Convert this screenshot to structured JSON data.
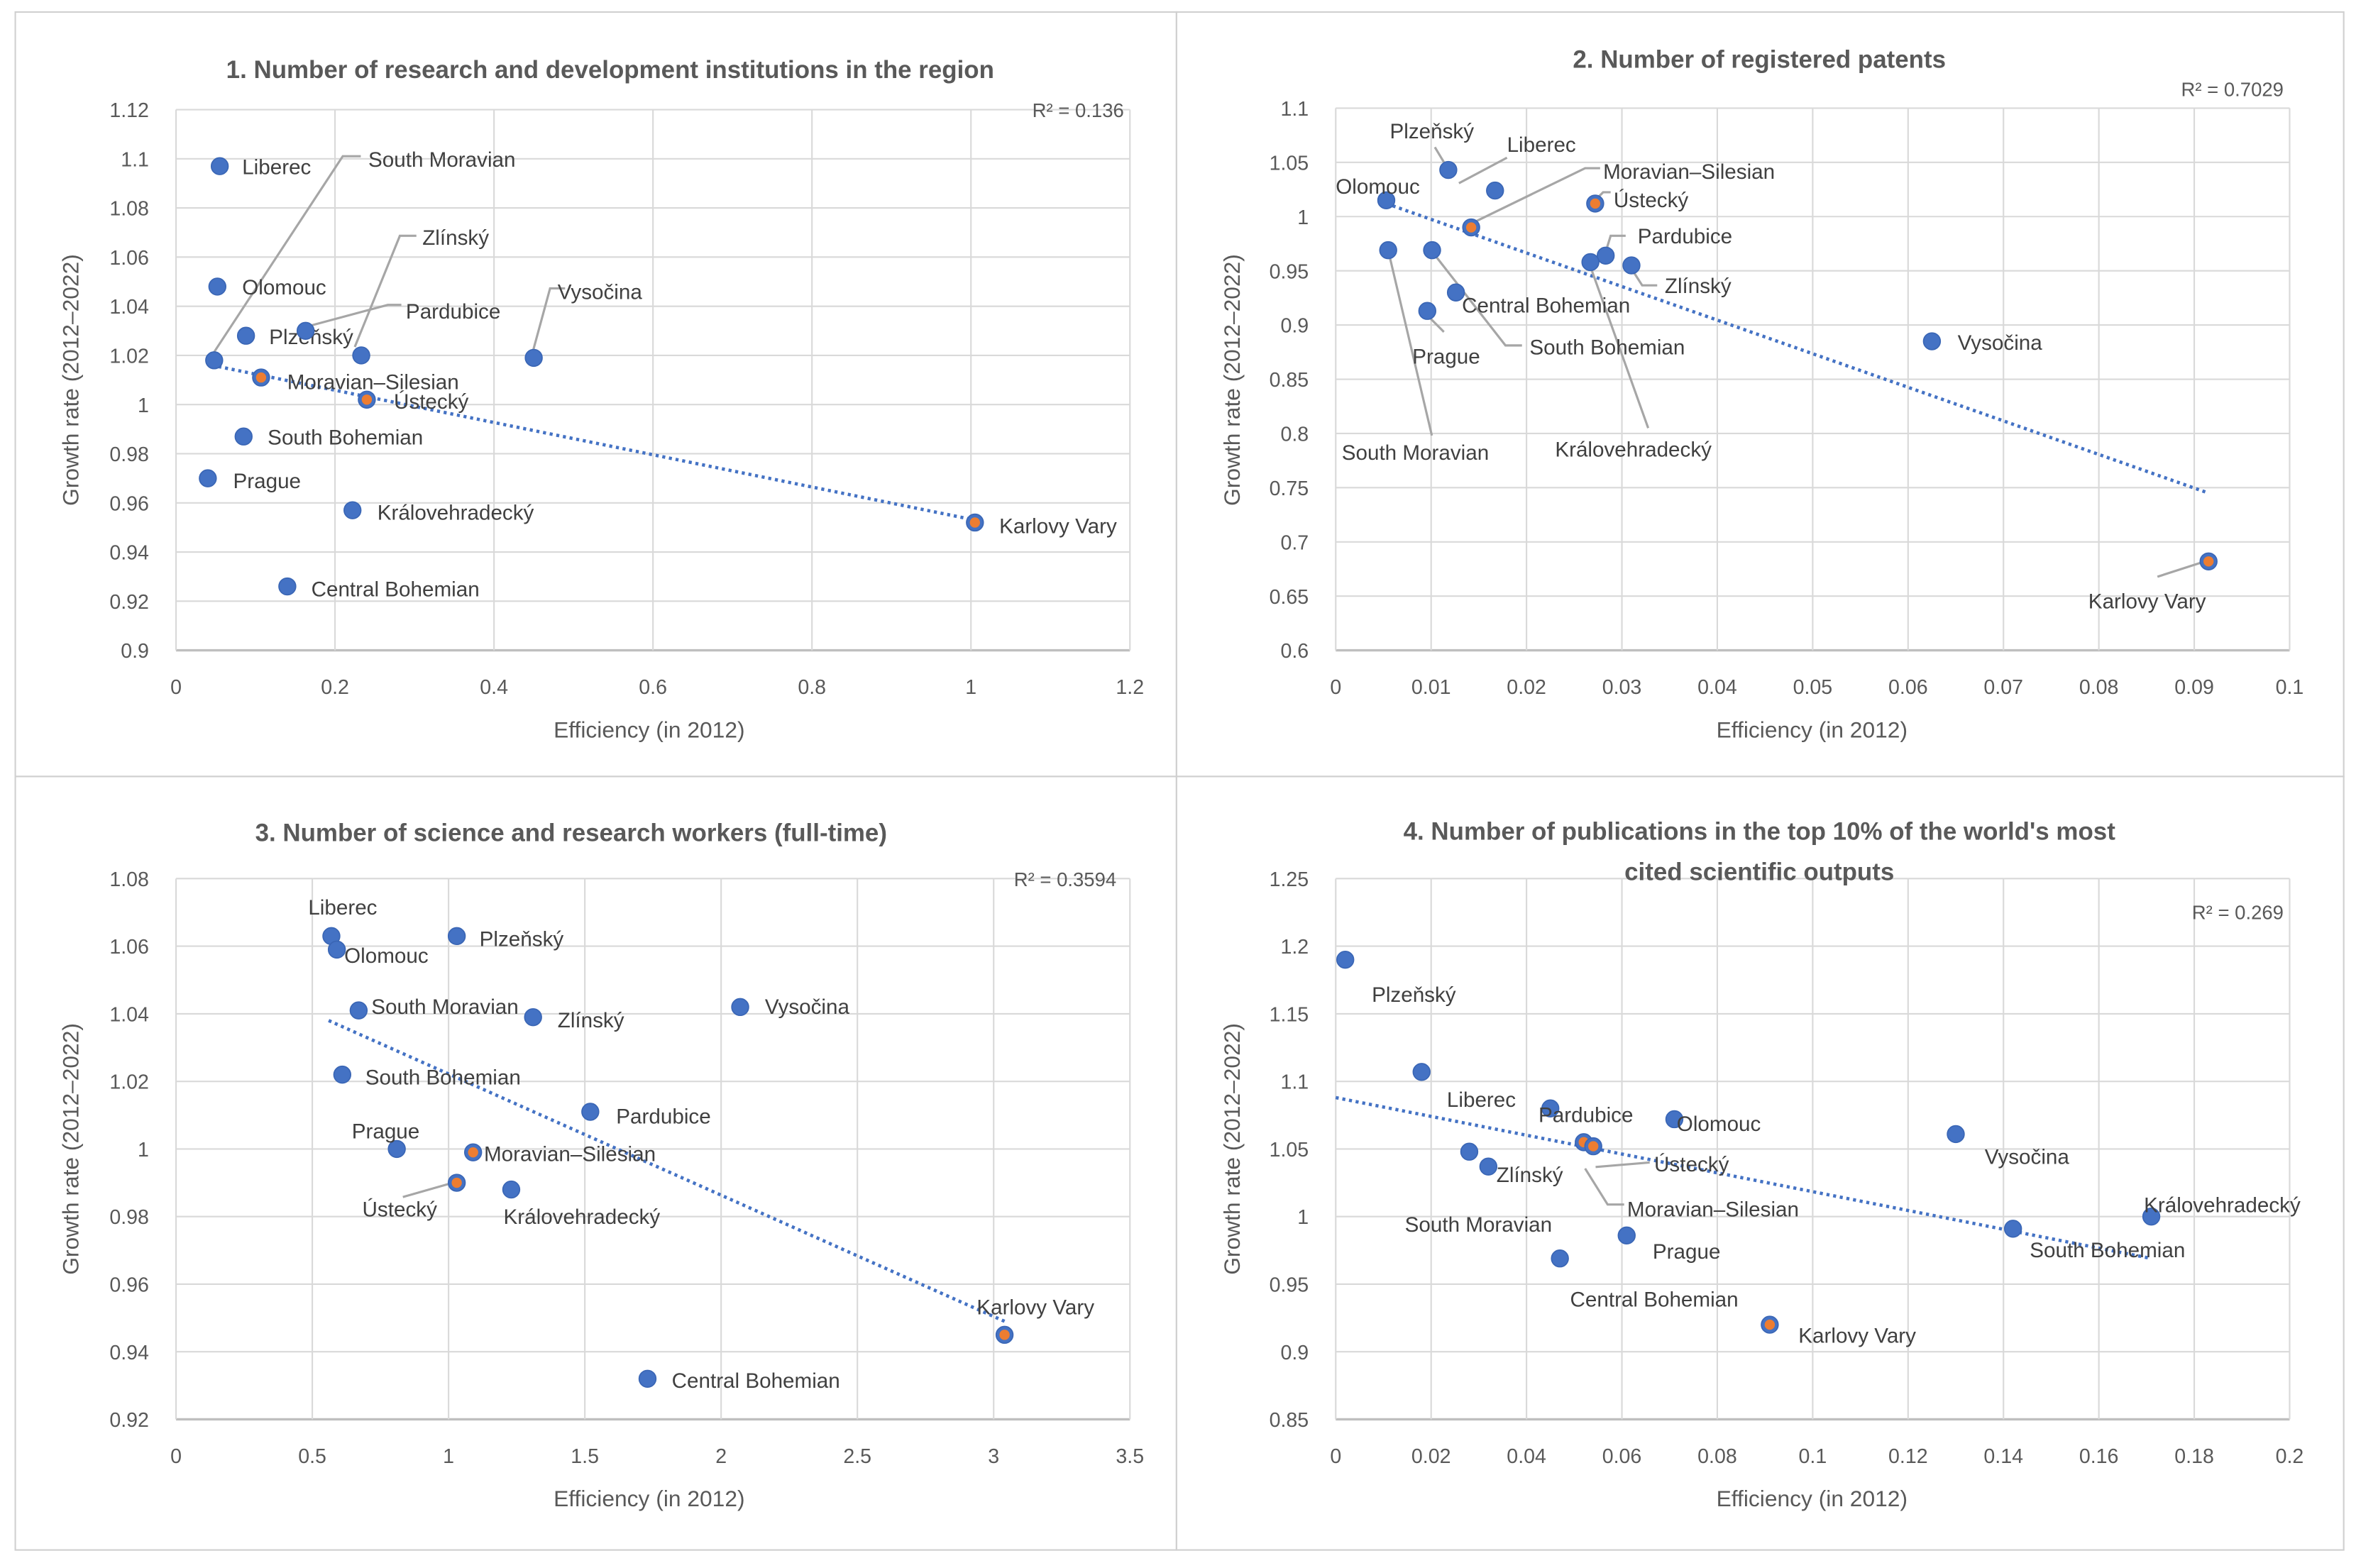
{
  "colors": {
    "marker": "#4472C4",
    "highlight": "#ED7D31",
    "trend": "#4472C4",
    "grid": "#D9D9D9",
    "leader": "#A6A6A6"
  },
  "chart_data": [
    {
      "type": "scatter",
      "title": [
        "1. Number of research and development institutions in the region"
      ],
      "xlabel": "Efficiency (in 2012)",
      "ylabel": "Growth  rate (2012–2022)",
      "xlim": [
        0,
        1.2
      ],
      "ylim": [
        0.9,
        1.12
      ],
      "xticks": [
        "0",
        "0.2",
        "0.4",
        "0.6",
        "0.8",
        "1",
        "1.2"
      ],
      "yticks": [
        "0.9",
        "0.92",
        "0.94",
        "0.96",
        "0.98",
        "1",
        "1.02",
        "1.04",
        "1.06",
        "1.08",
        "1.1",
        "1.12"
      ],
      "r2": "R² = 0.136",
      "trendline": {
        "x": [
          0.045,
          1.005
        ],
        "y": [
          1.016,
          0.953
        ]
      },
      "points": [
        {
          "name": "Liberec",
          "x": 0.055,
          "y": 1.097,
          "highlight": false
        },
        {
          "name": "South Moravian",
          "x": 0.048,
          "y": 1.018,
          "highlight": false
        },
        {
          "name": "Olomouc",
          "x": 0.052,
          "y": 1.048,
          "highlight": false
        },
        {
          "name": "Plzeňský",
          "x": 0.088,
          "y": 1.028,
          "highlight": false
        },
        {
          "name": "Pardubice",
          "x": 0.163,
          "y": 1.03,
          "highlight": false
        },
        {
          "name": "Zlínský",
          "x": 0.233,
          "y": 1.02,
          "highlight": false
        },
        {
          "name": "Vysočina",
          "x": 0.45,
          "y": 1.019,
          "highlight": false
        },
        {
          "name": "Moravian–Silesian",
          "x": 0.107,
          "y": 1.011,
          "highlight": true
        },
        {
          "name": "Ústecký",
          "x": 0.24,
          "y": 1.002,
          "highlight": true
        },
        {
          "name": "South Bohemian",
          "x": 0.085,
          "y": 0.987,
          "highlight": false
        },
        {
          "name": "Prague",
          "x": 0.04,
          "y": 0.97,
          "highlight": false
        },
        {
          "name": "Královehradecký",
          "x": 0.222,
          "y": 0.957,
          "highlight": false
        },
        {
          "name": "Central Bohemian",
          "x": 0.14,
          "y": 0.926,
          "highlight": false
        },
        {
          "name": "Karlovy Vary",
          "x": 1.005,
          "y": 0.952,
          "highlight": true
        }
      ]
    },
    {
      "type": "scatter",
      "title": [
        "2. Number of registered patents"
      ],
      "xlabel": "Efficiency (in 2012)",
      "ylabel": "Growth  rate (2012–2022)",
      "xlim": [
        0,
        0.1
      ],
      "ylim": [
        0.6,
        1.1
      ],
      "xticks": [
        "0",
        "0.01",
        "0.02",
        "0.03",
        "0.04",
        "0.05",
        "0.06",
        "0.07",
        "0.08",
        "0.09",
        "0.1"
      ],
      "yticks": [
        "0.6",
        "0.65",
        "0.7",
        "0.75",
        "0.8",
        "0.85",
        "0.9",
        "0.95",
        "1",
        "1.05",
        "1.1"
      ],
      "r2": "R² = 0.7029",
      "trendline": {
        "x": [
          0.0053,
          0.0915
        ],
        "y": [
          1.012,
          0.745
        ]
      },
      "points": [
        {
          "name": "Plzeňský",
          "x": 0.0118,
          "y": 1.043,
          "highlight": false
        },
        {
          "name": "Liberec",
          "x": 0.0167,
          "y": 1.024,
          "highlight": false
        },
        {
          "name": "Moravian–Silesian",
          "x": 0.0142,
          "y": 0.99,
          "highlight": true
        },
        {
          "name": "Olomouc",
          "x": 0.0053,
          "y": 1.015,
          "highlight": false
        },
        {
          "name": "Ústecký",
          "x": 0.0272,
          "y": 1.012,
          "highlight": true
        },
        {
          "name": "Pardubice",
          "x": 0.0283,
          "y": 0.964,
          "highlight": false
        },
        {
          "name": "Zlínský",
          "x": 0.031,
          "y": 0.955,
          "highlight": false
        },
        {
          "name": "Central Bohemian",
          "x": 0.0126,
          "y": 0.93,
          "highlight": false
        },
        {
          "name": "South Bohemian",
          "x": 0.0101,
          "y": 0.969,
          "highlight": false
        },
        {
          "name": "Prague",
          "x": 0.0096,
          "y": 0.913,
          "highlight": false
        },
        {
          "name": "South Moravian",
          "x": 0.0055,
          "y": 0.969,
          "highlight": false
        },
        {
          "name": "Královehradecký",
          "x": 0.0267,
          "y": 0.958,
          "highlight": false
        },
        {
          "name": "Vysočina",
          "x": 0.0625,
          "y": 0.885,
          "highlight": false
        },
        {
          "name": "Karlovy Vary",
          "x": 0.0915,
          "y": 0.682,
          "highlight": true
        }
      ]
    },
    {
      "type": "scatter",
      "title": [
        "3. Number of science and research workers (full-time)"
      ],
      "xlabel": "Efficiency (in 2012)",
      "ylabel": "Growth  rate (2012–2022)",
      "xlim": [
        0,
        3.5
      ],
      "ylim": [
        0.92,
        1.08
      ],
      "xticks": [
        "0",
        "0.5",
        "1",
        "1.5",
        "2",
        "2.5",
        "3",
        "3.5"
      ],
      "yticks": [
        "0.92",
        "0.94",
        "0.96",
        "0.98",
        "1",
        "1.02",
        "1.04",
        "1.06",
        "1.08"
      ],
      "r2": "R² = 0.3594",
      "trendline": {
        "x": [
          0.56,
          3.04
        ],
        "y": [
          1.038,
          0.949
        ]
      },
      "points": [
        {
          "name": "Liberec",
          "x": 0.57,
          "y": 1.063,
          "highlight": false
        },
        {
          "name": "Olomouc",
          "x": 0.59,
          "y": 1.059,
          "highlight": false
        },
        {
          "name": "Plzeňský",
          "x": 1.03,
          "y": 1.063,
          "highlight": false
        },
        {
          "name": "South Moravian",
          "x": 0.67,
          "y": 1.041,
          "highlight": false
        },
        {
          "name": "Zlínský",
          "x": 1.31,
          "y": 1.039,
          "highlight": false
        },
        {
          "name": "Vysočina",
          "x": 2.07,
          "y": 1.042,
          "highlight": false
        },
        {
          "name": "South Bohemian",
          "x": 0.61,
          "y": 1.022,
          "highlight": false
        },
        {
          "name": "Pardubice",
          "x": 1.52,
          "y": 1.011,
          "highlight": false
        },
        {
          "name": "Prague",
          "x": 0.81,
          "y": 1.0,
          "highlight": false
        },
        {
          "name": "Moravian–Silesian",
          "x": 1.09,
          "y": 0.999,
          "highlight": true
        },
        {
          "name": "Ústecký",
          "x": 1.03,
          "y": 0.99,
          "highlight": true
        },
        {
          "name": "Královehradecký",
          "x": 1.23,
          "y": 0.988,
          "highlight": false
        },
        {
          "name": "Central Bohemian",
          "x": 1.73,
          "y": 0.932,
          "highlight": false
        },
        {
          "name": "Karlovy Vary",
          "x": 3.04,
          "y": 0.945,
          "highlight": true
        }
      ]
    },
    {
      "type": "scatter",
      "title": [
        "4. Number of publications in the top 10% of the world's most",
        "cited scientific outputs"
      ],
      "xlabel": "Efficiency (in 2012)",
      "ylabel": "Growth  rate (2012–2022)",
      "xlim": [
        0,
        0.2
      ],
      "ylim": [
        0.85,
        1.25
      ],
      "xticks": [
        "0",
        "0.02",
        "0.04",
        "0.06",
        "0.08",
        "0.1",
        "0.12",
        "0.14",
        "0.16",
        "0.18",
        "0.2"
      ],
      "yticks": [
        "0.85",
        "0.9",
        "0.95",
        "1",
        "1.05",
        "1.1",
        "1.15",
        "1.2",
        "1.25"
      ],
      "r2": "R² = 0.269",
      "trendline": {
        "x": [
          0.0,
          0.171
        ],
        "y": [
          1.088,
          0.969
        ]
      },
      "points": [
        {
          "name": "Plzeňský",
          "x": 0.002,
          "y": 1.19,
          "highlight": false
        },
        {
          "name": "Liberec",
          "x": 0.018,
          "y": 1.107,
          "highlight": false
        },
        {
          "name": "Pardubice",
          "x": 0.045,
          "y": 1.08,
          "highlight": false
        },
        {
          "name": "Olomouc",
          "x": 0.071,
          "y": 1.072,
          "highlight": false
        },
        {
          "name": "Vysočina",
          "x": 0.13,
          "y": 1.061,
          "highlight": false
        },
        {
          "name": "Zlínský",
          "x": 0.028,
          "y": 1.048,
          "highlight": false
        },
        {
          "name": "Ústecký",
          "x": 0.052,
          "y": 1.055,
          "highlight": true
        },
        {
          "name": "South Moravian",
          "x": 0.032,
          "y": 1.037,
          "highlight": false
        },
        {
          "name": "Moravian–Silesian",
          "x": 0.054,
          "y": 1.052,
          "highlight": true
        },
        {
          "name": "Královehradecký",
          "x": 0.171,
          "y": 1.0,
          "highlight": false
        },
        {
          "name": "South Bohemian",
          "x": 0.142,
          "y": 0.991,
          "highlight": false
        },
        {
          "name": "Prague",
          "x": 0.061,
          "y": 0.986,
          "highlight": false
        },
        {
          "name": "Central Bohemian",
          "x": 0.047,
          "y": 0.969,
          "highlight": false
        },
        {
          "name": "Karlovy Vary",
          "x": 0.091,
          "y": 0.92,
          "highlight": true
        }
      ]
    }
  ]
}
